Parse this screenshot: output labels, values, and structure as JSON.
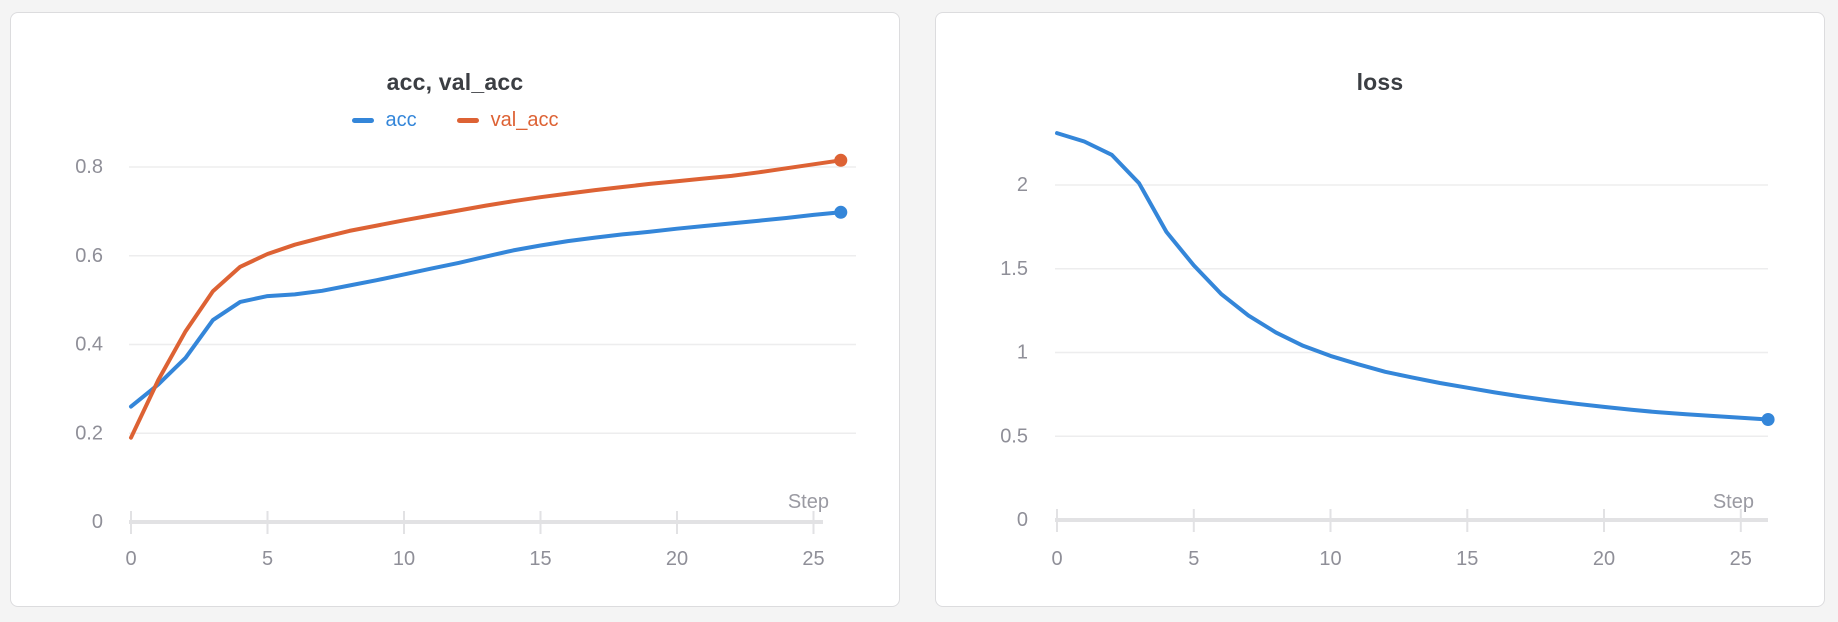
{
  "page_background": "#f4f4f4",
  "colors": {
    "blue": "#3486d9",
    "orange": "#dd6234",
    "grid": "#ededee",
    "axis": "#e2e2e4",
    "tick_text": "#8f8f98",
    "step_text": "#9a9aa2",
    "title_text": "#3b3e43",
    "panel_bg": "#ffffff",
    "panel_border": "#dcdcde"
  },
  "chart_data": [
    {
      "type": "line",
      "title": "acc, val_acc",
      "xlabel": "Step",
      "x_ticks": [
        0,
        5,
        10,
        15,
        20,
        25
      ],
      "y_ticks": [
        0,
        0.2,
        0.4,
        0.6,
        0.8
      ],
      "xlim": [
        0,
        26
      ],
      "ylim": [
        0,
        0.9
      ],
      "grid": true,
      "legend_position": "top",
      "x": [
        0,
        1,
        2,
        3,
        4,
        5,
        6,
        7,
        8,
        9,
        10,
        11,
        12,
        13,
        14,
        15,
        16,
        17,
        18,
        19,
        20,
        21,
        22,
        23,
        24,
        25,
        26
      ],
      "series": [
        {
          "name": "acc",
          "color_key": "blue",
          "end_dot": true,
          "values": [
            0.26,
            0.31,
            0.37,
            0.455,
            0.496,
            0.509,
            0.513,
            0.521,
            0.533,
            0.545,
            0.558,
            0.571,
            0.584,
            0.598,
            0.612,
            0.623,
            0.633,
            0.641,
            0.648,
            0.654,
            0.661,
            0.667,
            0.673,
            0.679,
            0.685,
            0.692,
            0.698
          ]
        },
        {
          "name": "val_acc",
          "color_key": "orange",
          "end_dot": true,
          "values": [
            0.19,
            0.32,
            0.43,
            0.52,
            0.575,
            0.604,
            0.625,
            0.641,
            0.656,
            0.668,
            0.68,
            0.691,
            0.702,
            0.713,
            0.723,
            0.732,
            0.74,
            0.748,
            0.755,
            0.762,
            0.768,
            0.774,
            0.78,
            0.788,
            0.797,
            0.806,
            0.815
          ]
        }
      ]
    },
    {
      "type": "line",
      "title": "loss",
      "xlabel": "Step",
      "x_ticks": [
        0,
        5,
        10,
        15,
        20,
        25
      ],
      "y_ticks": [
        0,
        0.5,
        1,
        1.5,
        2
      ],
      "xlim": [
        0,
        26
      ],
      "ylim": [
        0,
        2.37
      ],
      "grid": true,
      "legend_position": "none",
      "x": [
        0,
        1,
        2,
        3,
        4,
        5,
        6,
        7,
        8,
        9,
        10,
        11,
        12,
        13,
        14,
        15,
        16,
        17,
        18,
        19,
        20,
        21,
        22,
        23,
        24,
        25,
        26
      ],
      "series": [
        {
          "name": "loss",
          "color_key": "blue",
          "end_dot": true,
          "values": [
            2.31,
            2.26,
            2.18,
            2.01,
            1.72,
            1.52,
            1.35,
            1.22,
            1.12,
            1.04,
            0.98,
            0.93,
            0.885,
            0.85,
            0.818,
            0.79,
            0.762,
            0.737,
            0.714,
            0.694,
            0.675,
            0.658,
            0.643,
            0.631,
            0.621,
            0.61,
            0.6
          ]
        }
      ]
    }
  ]
}
